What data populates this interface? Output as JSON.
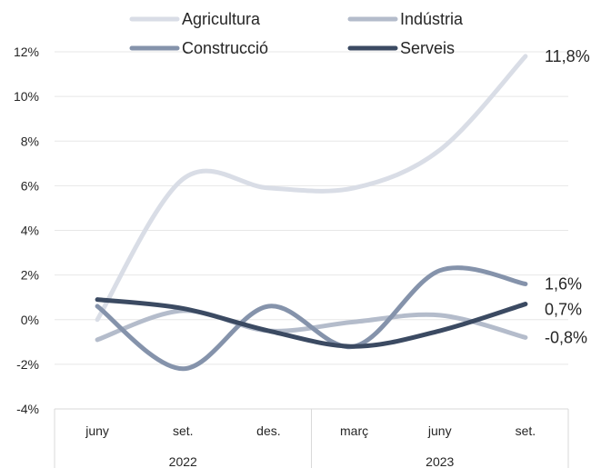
{
  "chart_data": {
    "type": "line",
    "title": "",
    "xlabel": "",
    "ylabel": "",
    "categories": [
      "juny",
      "set.",
      "des.",
      "març",
      "juny",
      "set."
    ],
    "year_groups": [
      {
        "label": "2022",
        "span": [
          0,
          2
        ]
      },
      {
        "label": "2023",
        "span": [
          3,
          5
        ]
      }
    ],
    "ylim": [
      -4,
      12
    ],
    "yticks": [
      -4,
      -2,
      0,
      2,
      4,
      6,
      8,
      10,
      12
    ],
    "ytick_labels": [
      "-4%",
      "-2%",
      "0%",
      "2%",
      "4%",
      "6%",
      "8%",
      "10%",
      "12%"
    ],
    "grid": true,
    "legend": "top",
    "series": [
      {
        "name": "Agricultura",
        "color": "#d9dde6",
        "values": [
          0.0,
          6.3,
          5.9,
          5.9,
          7.6,
          11.8
        ],
        "end_label": "11,8%"
      },
      {
        "name": "Indústria",
        "color": "#b4bccb",
        "values": [
          -0.9,
          0.4,
          -0.5,
          -0.1,
          0.2,
          -0.8
        ],
        "end_label": "-0,8%"
      },
      {
        "name": "Construcció",
        "color": "#8593ab",
        "values": [
          0.6,
          -2.2,
          0.6,
          -1.2,
          2.2,
          1.6
        ],
        "end_label": "1,6%"
      },
      {
        "name": "Serveis",
        "color": "#3b4a62",
        "values": [
          0.9,
          0.5,
          -0.5,
          -1.2,
          -0.5,
          0.7
        ],
        "end_label": "0,7%"
      }
    ]
  }
}
